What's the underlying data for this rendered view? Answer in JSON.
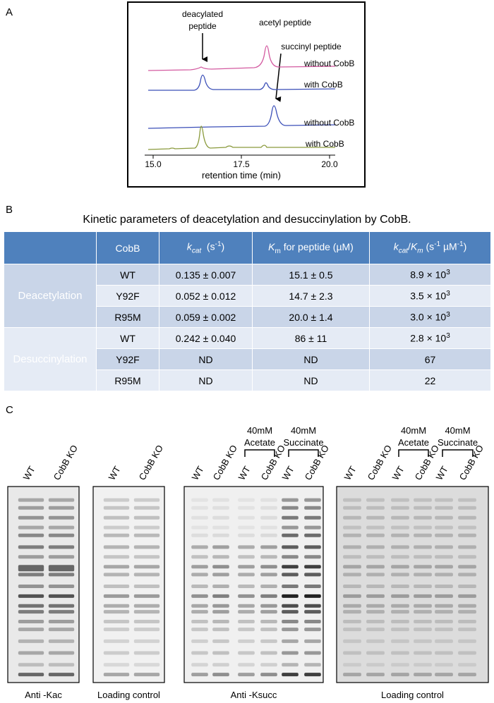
{
  "panel_a": {
    "label": "A",
    "annotations": [
      "deacylated",
      "peptide",
      "acetyl peptide",
      "succinyl peptide"
    ],
    "trace_labels": [
      "without CobB",
      "with CobB",
      "without CobB",
      "with CobB"
    ],
    "x_ticks": [
      "15.0",
      "17.5",
      "20.0"
    ],
    "x_label": "retention time (min)"
  },
  "panel_b": {
    "label": "B",
    "title": "Kinetic parameters of deacetylation and desuccinylation by CobB.",
    "columns": [
      [
        "CobB"
      ],
      [
        "k",
        "cat",
        "  (s",
        "-1",
        ")"
      ],
      [
        "K",
        "m",
        " for peptide (µM)"
      ],
      [
        "k",
        "cat",
        "/",
        "K",
        "m",
        " (s",
        "-1",
        " µM",
        "-1",
        ")"
      ]
    ],
    "groups": [
      {
        "name": "Deacetylation",
        "rows": [
          [
            "WT",
            "0.135 ± 0.007",
            "15.1 ± 0.5",
            [
              "8.9 × 10",
              "3"
            ]
          ],
          [
            "Y92F",
            "0.052 ± 0.012",
            "14.7 ± 2.3",
            [
              "3.5 × 10",
              "3"
            ]
          ],
          [
            "R95M",
            "0.059 ± 0.002",
            "20.0 ± 1.4",
            [
              "3.0 × 10",
              "3"
            ]
          ]
        ]
      },
      {
        "name": "Desuccinylation",
        "rows": [
          [
            "WT",
            "0.242 ± 0.040",
            "86 ± 11",
            [
              "2.8 × 10",
              "3"
            ]
          ],
          [
            "Y92F",
            "ND",
            "ND",
            "67"
          ],
          [
            "R95M",
            "ND",
            "ND",
            "22"
          ]
        ]
      }
    ]
  },
  "panel_c": {
    "label": "C",
    "blots": [
      {
        "lanes": [
          "WT",
          "CobB KO"
        ],
        "caption": "Anti -Kac",
        "brackets": []
      },
      {
        "lanes": [
          "WT",
          "CobB KO"
        ],
        "caption": "Loading control",
        "brackets": []
      },
      {
        "lanes": [
          "WT",
          "CobB  KO",
          "WT",
          "CobB KO",
          "WT",
          "CobB KO"
        ],
        "caption": "Anti -Ksucc",
        "brackets": [
          [
            "40mM",
            "Acetate"
          ],
          [
            "40mM",
            "Succinate"
          ]
        ]
      },
      {
        "lanes": [
          "WT",
          "CobB KO",
          "WT",
          "CobB KO",
          "WT",
          "CobB KO"
        ],
        "caption": "Loading control",
        "brackets": [
          [
            "40mM",
            "Acetate"
          ],
          [
            "40mM",
            "Succinate"
          ]
        ]
      }
    ]
  }
}
